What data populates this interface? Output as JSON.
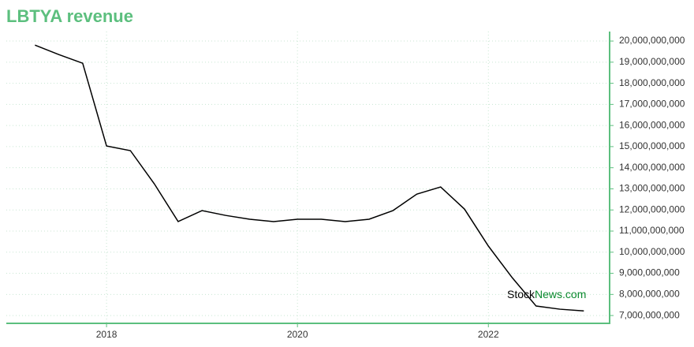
{
  "chart_data": {
    "type": "line",
    "title": "LBTYA revenue",
    "x": [
      2017.25,
      2017.5,
      2017.75,
      2018.0,
      2018.25,
      2018.5,
      2018.75,
      2019.0,
      2019.25,
      2019.5,
      2019.75,
      2020.0,
      2020.25,
      2020.5,
      2020.75,
      2021.0,
      2021.25,
      2021.5,
      2021.75,
      2022.0,
      2022.25,
      2022.5,
      2022.75,
      2023.0
    ],
    "series": [
      {
        "name": "LBTYA revenue",
        "color": "#000000",
        "values": [
          19810000000,
          19360000000,
          18950000000,
          15030000000,
          14810000000,
          13240000000,
          11450000000,
          11970000000,
          11740000000,
          11560000000,
          11450000000,
          11560000000,
          11560000000,
          11450000000,
          11560000000,
          11970000000,
          12750000000,
          13090000000,
          12040000000,
          10290000000,
          8790000000,
          7450000000,
          7300000000,
          7220000000
        ]
      }
    ],
    "xlim": [
      2016.95,
      2023.27
    ],
    "xticks": [
      2018,
      2020,
      2022
    ],
    "ylim": [
      6630000000,
      20450000000
    ],
    "yticks": [
      {
        "value": 7000000000,
        "label": "7,000,000,000"
      },
      {
        "value": 8000000000,
        "label": "8,000,000,000"
      },
      {
        "value": 9000000000,
        "label": "9,000,000,000"
      },
      {
        "value": 10000000000,
        "label": "10,000,000,000"
      },
      {
        "value": 11000000000,
        "label": "11,000,000,000"
      },
      {
        "value": 12000000000,
        "label": "12,000,000,000"
      },
      {
        "value": 13000000000,
        "label": "13,000,000,000"
      },
      {
        "value": 14000000000,
        "label": "14,000,000,000"
      },
      {
        "value": 15000000000,
        "label": "15,000,000,000"
      },
      {
        "value": 16000000000,
        "label": "16,000,000,000"
      },
      {
        "value": 17000000000,
        "label": "17,000,000,000"
      },
      {
        "value": 18000000000,
        "label": "18,000,000,000"
      },
      {
        "value": 19000000000,
        "label": "19,000,000,000"
      },
      {
        "value": 20000000000,
        "label": "20,000,000,000"
      }
    ],
    "grid": true,
    "axis_color": "#5cbf7e",
    "watermark": {
      "stock": "Stock",
      "news": "News.com"
    }
  }
}
